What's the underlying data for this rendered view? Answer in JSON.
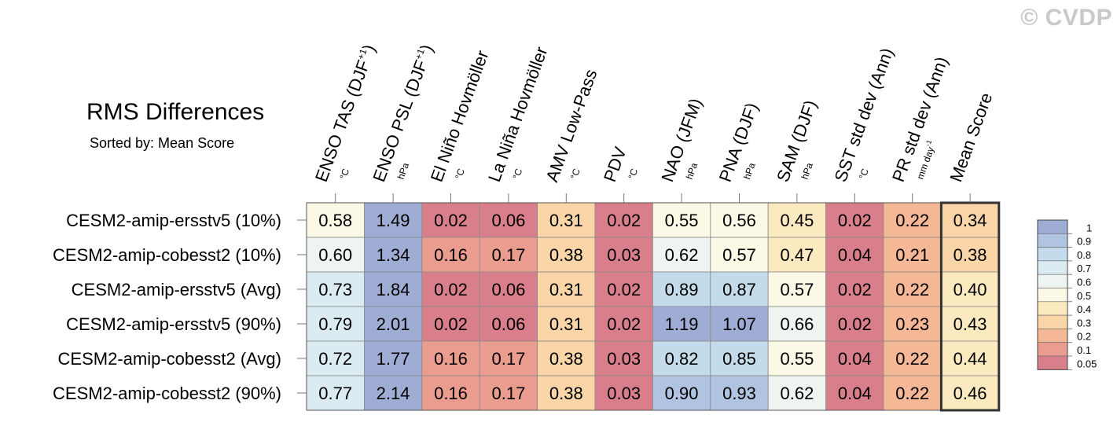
{
  "watermark": "© CVDP",
  "title": "RMS Differences",
  "subtitle": "Sorted by: Mean Score",
  "chart_data": {
    "type": "heatmap",
    "columns": [
      {
        "name": "ENSO TAS (DJF",
        "sup": "+1",
        "close": ")",
        "unit": "°C"
      },
      {
        "name": "ENSO PSL (DJF",
        "sup": "+1",
        "close": ")",
        "unit": "hPa"
      },
      {
        "name": "El Niño Hovmöller",
        "unit": "°C"
      },
      {
        "name": "La Niña Hovmöller",
        "unit": "°C"
      },
      {
        "name": "AMV Low-Pass",
        "unit": "°C"
      },
      {
        "name": "PDV",
        "unit": "°C"
      },
      {
        "name": "NAO (JFM)",
        "unit": "hPa"
      },
      {
        "name": "PNA (DJF)",
        "unit": "hPa"
      },
      {
        "name": "SAM (DJF)",
        "unit": "hPa"
      },
      {
        "name": "SST std dev (Ann)",
        "unit": "°C"
      },
      {
        "name": "PR std dev (Ann)",
        "unit": "mm day",
        "unit_sup": "-1"
      },
      {
        "name": "Mean Score",
        "unit": ""
      }
    ],
    "rows": [
      {
        "label": "CESM2-amip-ersstv5 (10%)",
        "values": [
          "0.58",
          "1.49",
          "0.02",
          "0.06",
          "0.31",
          "0.02",
          "0.55",
          "0.56",
          "0.45",
          "0.02",
          "0.22",
          "0.34"
        ]
      },
      {
        "label": "CESM2-amip-cobesst2 (10%)",
        "values": [
          "0.60",
          "1.34",
          "0.16",
          "0.17",
          "0.38",
          "0.03",
          "0.62",
          "0.57",
          "0.47",
          "0.04",
          "0.21",
          "0.38"
        ]
      },
      {
        "label": "CESM2-amip-ersstv5 (Avg)",
        "values": [
          "0.73",
          "1.84",
          "0.02",
          "0.06",
          "0.31",
          "0.02",
          "0.89",
          "0.87",
          "0.57",
          "0.02",
          "0.22",
          "0.40"
        ]
      },
      {
        "label": "CESM2-amip-ersstv5 (90%)",
        "values": [
          "0.79",
          "2.01",
          "0.02",
          "0.06",
          "0.31",
          "0.02",
          "1.19",
          "1.07",
          "0.66",
          "0.02",
          "0.23",
          "0.43"
        ]
      },
      {
        "label": "CESM2-amip-cobesst2 (Avg)",
        "values": [
          "0.72",
          "1.77",
          "0.16",
          "0.17",
          "0.38",
          "0.03",
          "0.82",
          "0.85",
          "0.55",
          "0.04",
          "0.22",
          "0.44"
        ]
      },
      {
        "label": "CESM2-amip-cobesst2 (90%)",
        "values": [
          "0.77",
          "2.14",
          "0.16",
          "0.17",
          "0.38",
          "0.03",
          "0.90",
          "0.93",
          "0.62",
          "0.04",
          "0.22",
          "0.46"
        ]
      }
    ],
    "colorbar": {
      "labels": [
        "1",
        "0.9",
        "0.8",
        "0.7",
        "0.6",
        "0.5",
        "0.4",
        "0.3",
        "0.2",
        "0.1",
        "0.05"
      ],
      "colors": [
        "#9fadd5",
        "#b0c4e2",
        "#c4dbeb",
        "#daebf2",
        "#eef4f0",
        "#fbf8e6",
        "#fbe9c0",
        "#f9d5a8",
        "#f4b897",
        "#ea9c8e",
        "#d97f8c"
      ]
    }
  }
}
